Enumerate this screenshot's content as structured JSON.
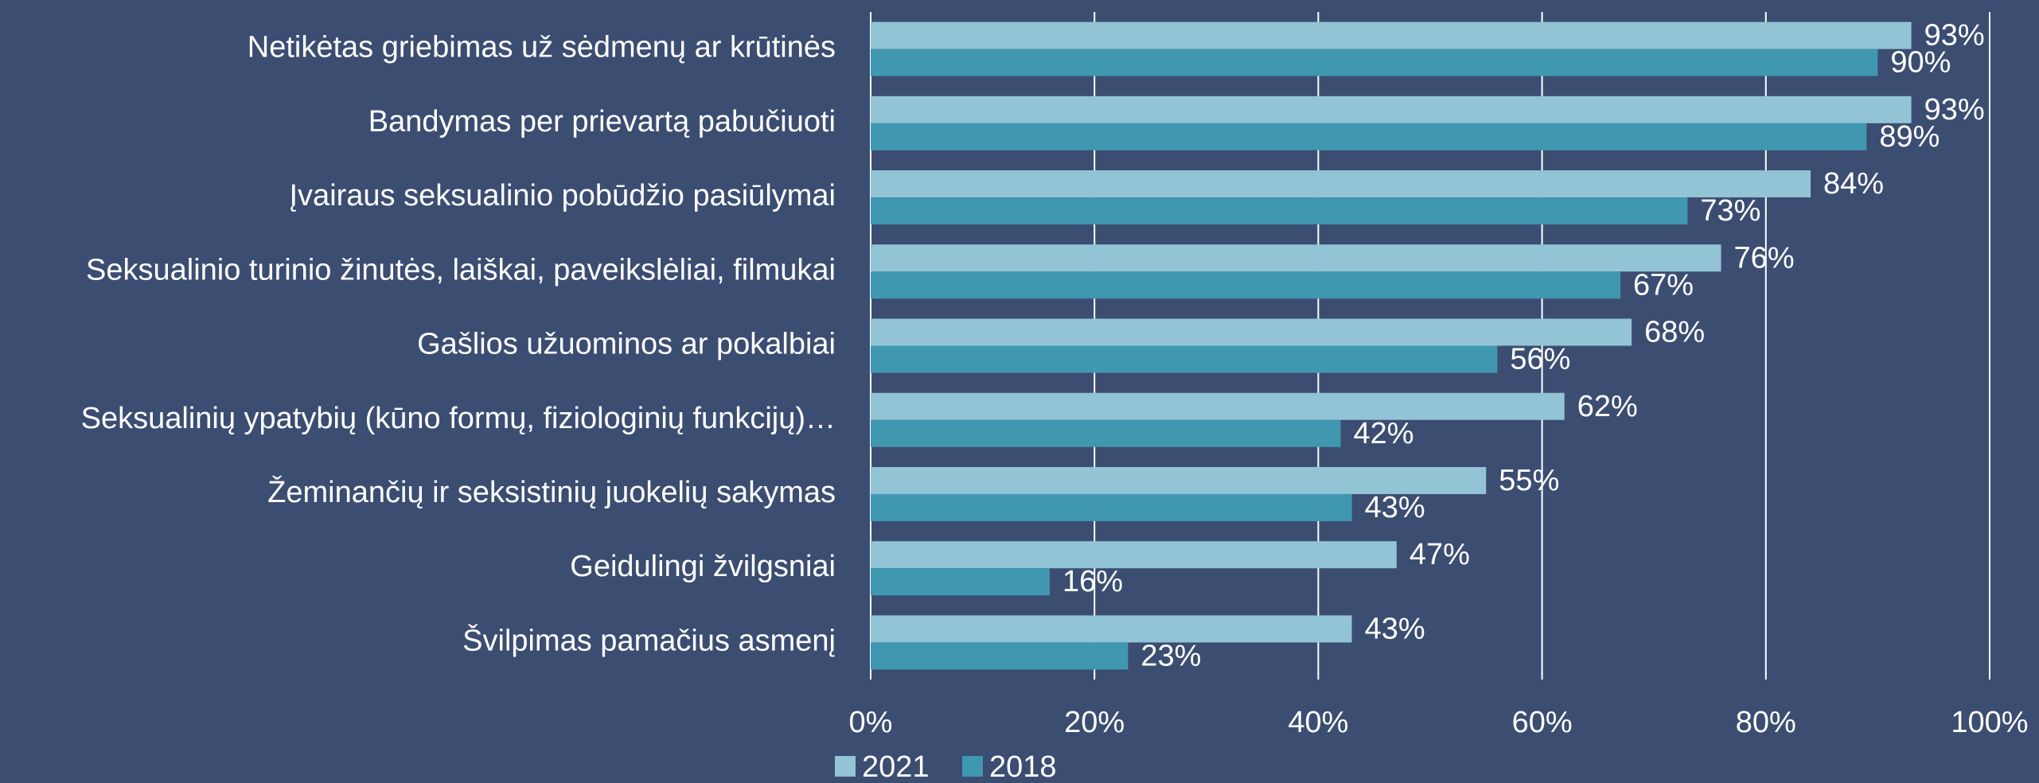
{
  "chart_data": {
    "type": "barh",
    "categories": [
      "Netikėtas griebimas už sėdmenų ar krūtinės",
      "Bandymas per prievartą pabučiuoti",
      "Įvairaus seksualinio pobūdžio pasiūlymai",
      "Seksualinio turinio žinutės, laiškai, paveikslėliai, filmukai",
      "Gašlios užuominos ar pokalbiai",
      "Seksualinių ypatybių (kūno formų, fiziologinių funkcijų)…",
      "Žeminančių ir seksistinių juokelių sakymas",
      "Geidulingi žvilgsniai",
      "Švilpimas pamačius asmenį"
    ],
    "series": [
      {
        "name": "2021",
        "color": "#92c4d6",
        "values": [
          93,
          93,
          84,
          76,
          68,
          62,
          55,
          47,
          43
        ],
        "value_labels": [
          "93%",
          "93%",
          "84%",
          "76%",
          "68%",
          "62%",
          "55%",
          "47%",
          "43%"
        ]
      },
      {
        "name": "2018",
        "color": "#3f98b0",
        "values": [
          90,
          89,
          73,
          67,
          56,
          42,
          43,
          16,
          23
        ],
        "value_labels": [
          "90%",
          "89%",
          "73%",
          "67%",
          "56%",
          "42%",
          "43%",
          "16%",
          "23%"
        ]
      }
    ],
    "xlim": [
      0,
      100
    ],
    "xticks": [
      {
        "value": 0,
        "label": "0%"
      },
      {
        "value": 20,
        "label": "20%"
      },
      {
        "value": 40,
        "label": "40%"
      },
      {
        "value": 60,
        "label": "60%"
      },
      {
        "value": 80,
        "label": "80%"
      },
      {
        "value": 100,
        "label": "100%"
      }
    ],
    "grid": true,
    "legend": "bottom"
  }
}
